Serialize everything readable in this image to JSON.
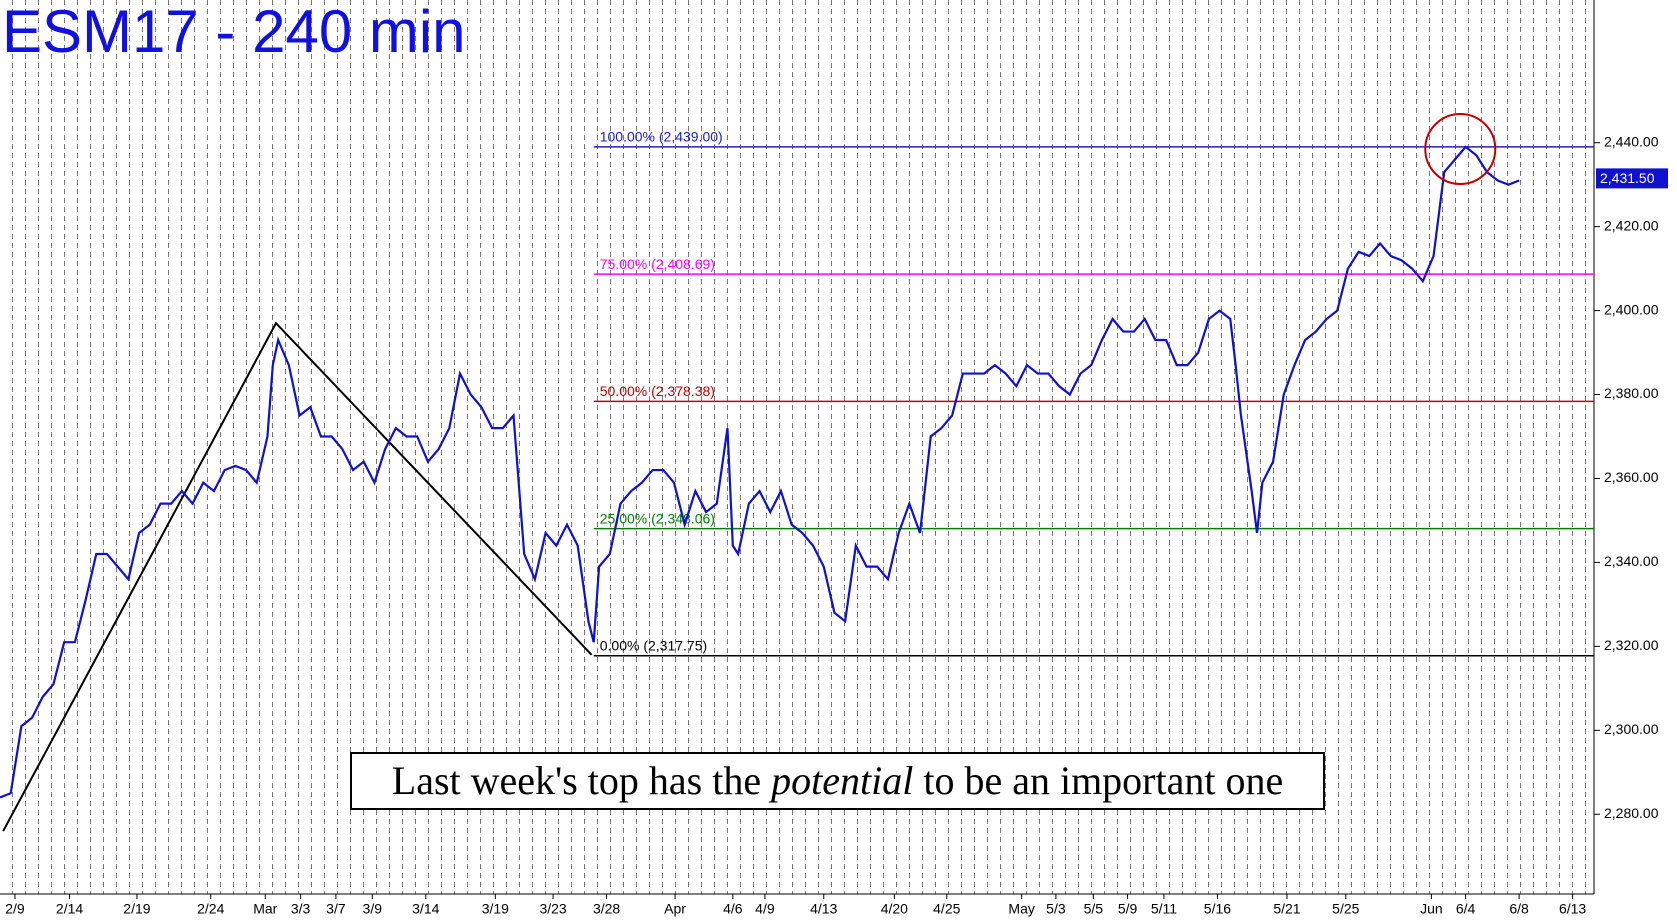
{
  "chart_data": {
    "type": "line",
    "title": "ESM17 - 240 min",
    "color": "#1010d0",
    "x": [
      0,
      1,
      2,
      3,
      4,
      5,
      6,
      7,
      8,
      9,
      10,
      11,
      12,
      13,
      14,
      15,
      16,
      17,
      18,
      19,
      20,
      21,
      22,
      23,
      24,
      25,
      25.5,
      26,
      27,
      28,
      29,
      30,
      31,
      32,
      33,
      34,
      35,
      36,
      37,
      38,
      39,
      40,
      41,
      42,
      43,
      44,
      45,
      46,
      47,
      48,
      49,
      50,
      51,
      52,
      53,
      54,
      55,
      55.5,
      56,
      57,
      58,
      59,
      60,
      61,
      62,
      63,
      64,
      65,
      66,
      67,
      68,
      68.5,
      69,
      70,
      71,
      72,
      73,
      74,
      75,
      76,
      77,
      78,
      79,
      80,
      81,
      82,
      83,
      84,
      85,
      86,
      87,
      88,
      89,
      90,
      91,
      92,
      93,
      94,
      95,
      96,
      97,
      98,
      99,
      100,
      101,
      102,
      103,
      104,
      105,
      106,
      107,
      108,
      109,
      110,
      111,
      112,
      113,
      114,
      115,
      115.5,
      116,
      117,
      117.5,
      118,
      119,
      120,
      121,
      122,
      123,
      124,
      125,
      126,
      127,
      128,
      129,
      130,
      131,
      132,
      133,
      134,
      135,
      136,
      137,
      138,
      139,
      140,
      141,
      142
    ],
    "values": [
      2284,
      2285,
      2301,
      2303,
      2308,
      2311,
      2321,
      2321,
      2331,
      2342,
      2342,
      2339,
      2336,
      2347,
      2349,
      2354,
      2354,
      2357,
      2354,
      2359,
      2357,
      2362,
      2363,
      2362,
      2359,
      2370,
      2387,
      2393,
      2387,
      2375,
      2377,
      2370,
      2370,
      2367,
      2362,
      2364,
      2359,
      2367,
      2372,
      2370,
      2370,
      2364,
      2367,
      2372,
      2385,
      2380,
      2377,
      2372,
      2372,
      2375,
      2342,
      2336,
      2347,
      2344,
      2349,
      2344,
      2326,
      2321,
      2339,
      2342,
      2354,
      2357,
      2359,
      2362,
      2362,
      2359,
      2349,
      2357,
      2352,
      2354,
      2372,
      2344,
      2342,
      2354,
      2357,
      2352,
      2357,
      2349,
      2347,
      2344,
      2339,
      2328,
      2326,
      2344,
      2339,
      2339,
      2336,
      2347,
      2354,
      2347,
      2370,
      2372,
      2375,
      2385,
      2385,
      2385,
      2387,
      2385,
      2382,
      2387,
      2385,
      2385,
      2382,
      2380,
      2385,
      2387,
      2393,
      2398,
      2395,
      2395,
      2398,
      2393,
      2393,
      2387,
      2387,
      2390,
      2398,
      2400,
      2398,
      2387,
      2375,
      2357,
      2347,
      2359,
      2364,
      2380,
      2387,
      2393,
      2395,
      2398,
      2400,
      2410,
      2414,
      2413,
      2416,
      2413,
      2412,
      2410,
      2407,
      2413,
      2433,
      2436,
      2439,
      2437,
      2433,
      2431,
      2430,
      2431
    ],
    "xlim": [
      0,
      149
    ],
    "ylim": [
      2261,
      2474
    ],
    "xticks": [
      {
        "value": 1.4,
        "label": "2/9"
      },
      {
        "value": 6.5,
        "label": "2/14"
      },
      {
        "value": 12.8,
        "label": "2/19"
      },
      {
        "value": 19.7,
        "label": "2/24"
      },
      {
        "value": 24.8,
        "label": "Mar"
      },
      {
        "value": 28.1,
        "label": "3/3"
      },
      {
        "value": 31.4,
        "label": "3/7"
      },
      {
        "value": 34.8,
        "label": "3/9"
      },
      {
        "value": 39.8,
        "label": "3/14"
      },
      {
        "value": 46.3,
        "label": "3/19"
      },
      {
        "value": 51.7,
        "label": "3/23"
      },
      {
        "value": 56.7,
        "label": "3/28"
      },
      {
        "value": 63.1,
        "label": "Apr"
      },
      {
        "value": 68.5,
        "label": "4/6"
      },
      {
        "value": 71.5,
        "label": "4/9"
      },
      {
        "value": 77,
        "label": "4/13"
      },
      {
        "value": 83.6,
        "label": "4/20"
      },
      {
        "value": 88.5,
        "label": "4/25"
      },
      {
        "value": 95.5,
        "label": "May"
      },
      {
        "value": 98.7,
        "label": "5/3"
      },
      {
        "value": 102.2,
        "label": "5/5"
      },
      {
        "value": 105.4,
        "label": "5/9"
      },
      {
        "value": 108.8,
        "label": "5/11"
      },
      {
        "value": 113.8,
        "label": "5/16"
      },
      {
        "value": 120.3,
        "label": "5/21"
      },
      {
        "value": 125.8,
        "label": "5/25"
      },
      {
        "value": 133.8,
        "label": "Jun"
      },
      {
        "value": 137,
        "label": "6/4"
      },
      {
        "value": 142,
        "label": "6/8"
      },
      {
        "value": 147,
        "label": "6/13"
      }
    ],
    "yticks": [
      {
        "value": 2280,
        "label": "2,280.00"
      },
      {
        "value": 2300,
        "label": "2,300.00"
      },
      {
        "value": 2320,
        "label": "2,320.00"
      },
      {
        "value": 2340,
        "label": "2,340.00"
      },
      {
        "value": 2360,
        "label": "2,360.00"
      },
      {
        "value": 2380,
        "label": "2,380.00"
      },
      {
        "value": 2400,
        "label": "2,400.00"
      },
      {
        "value": 2420,
        "label": "2,420.00"
      },
      {
        "value": 2440,
        "label": "2,440.00"
      }
    ],
    "last_price": {
      "value": 2431.5,
      "label": "2,431.50"
    },
    "fib_levels": [
      {
        "label": "100.00% (2,439.00)",
        "value": 2439,
        "color": "#2020c0"
      },
      {
        "label": "75.00% (2,408.69)",
        "value": 2408.69,
        "color": "#ff00ff"
      },
      {
        "label": "50.00% (2,378.38)",
        "value": 2378.38,
        "color": "#c00000"
      },
      {
        "label": "25.00% (2,348.06)",
        "value": 2348.06,
        "color": "#008000"
      },
      {
        "label": "0.00% (2,317.75)",
        "value": 2317.75,
        "color": "#000000"
      }
    ],
    "fib_start_x": 55.5,
    "trend_line": {
      "x": [
        0.3,
        25.8,
        55.3
      ],
      "values": [
        2276,
        2397,
        2318
      ]
    },
    "highlight": {
      "x": 136.5,
      "value": 2438.5
    },
    "caption": [
      "Last week's top has the ",
      "potential",
      " to be an important one"
    ]
  }
}
